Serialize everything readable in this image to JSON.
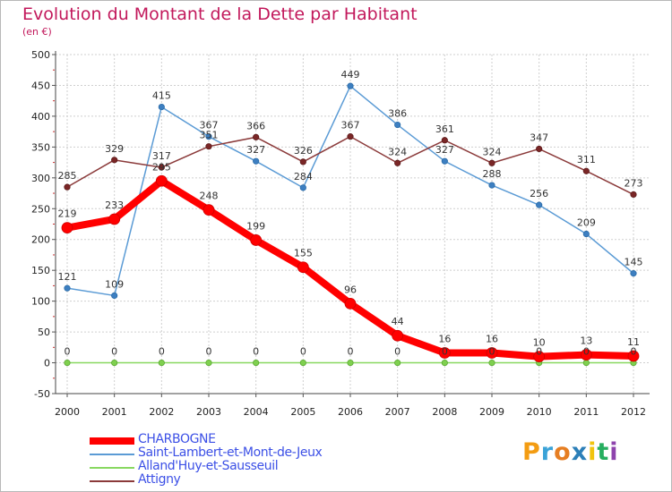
{
  "title": "Evolution du Montant de la Dette par Habitant",
  "unit_label": "(en €)",
  "brand": {
    "letters": [
      "P",
      "r",
      "o",
      "x",
      "i",
      "t",
      "i"
    ],
    "colors": [
      "#f39c12",
      "#3ba3d8",
      "#e67e22",
      "#2c7fb8",
      "#f1c40f",
      "#27ae60",
      "#8e44ad"
    ]
  },
  "chart_data": {
    "type": "line",
    "x": [
      2000,
      2001,
      2002,
      2003,
      2004,
      2005,
      2006,
      2007,
      2008,
      2009,
      2010,
      2011,
      2012
    ],
    "ylim": [
      -50,
      500
    ],
    "yticks": [
      -50,
      0,
      50,
      100,
      150,
      200,
      250,
      300,
      350,
      400,
      450,
      500
    ],
    "grid": true,
    "legend_position": "bottom-left",
    "series": [
      {
        "name": "CHARBOGNE",
        "color": "#ff0000",
        "values": [
          219,
          233,
          295,
          248,
          199,
          155,
          96,
          44,
          16,
          16,
          10,
          13,
          11
        ]
      },
      {
        "name": "Saint-Lambert-et-Mont-de-Jeux",
        "color": "#5b9bd5",
        "values": [
          121,
          109,
          415,
          367,
          327,
          284,
          449,
          386,
          327,
          288,
          256,
          209,
          145
        ]
      },
      {
        "name": "Alland'Huy-et-Sausseuil",
        "color": "#88d860",
        "values": [
          0,
          0,
          0,
          0,
          0,
          0,
          0,
          0,
          0,
          0,
          0,
          0,
          0
        ]
      },
      {
        "name": "Attigny",
        "color": "#8b3a3a",
        "values": [
          285,
          329,
          317,
          351,
          366,
          326,
          367,
          324,
          361,
          324,
          347,
          311,
          273
        ]
      }
    ]
  }
}
